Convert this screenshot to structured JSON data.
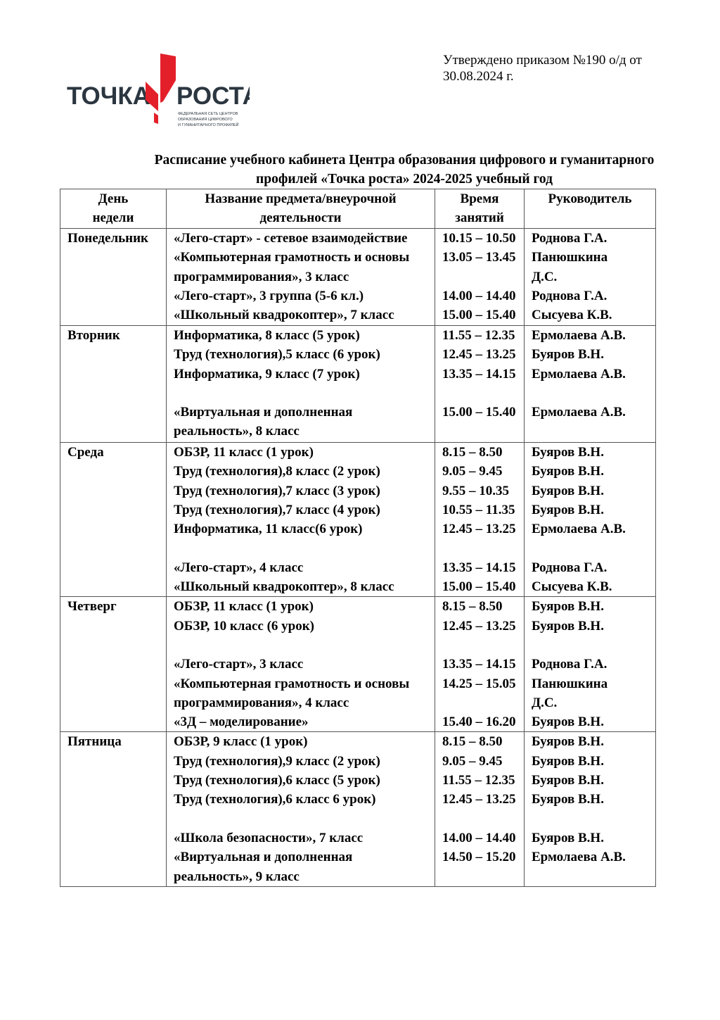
{
  "approval": "Утверждено приказом №190 о/д от 30.08.2024 г.",
  "logo": {
    "left": "ТОЧКА",
    "right": "РОСТА",
    "subtitle": "ФЕДЕРАЛЬНАЯ СЕТЬ ЦЕНТРОВ ОБРАЗОВАНИЯ ЦИФРОВОГО И ГУМАНИТАРНОГО ПРОФИЛЕЙ",
    "accent": "#e3202a",
    "dark": "#2b3640"
  },
  "title": "Расписание учебного кабинета Центра образования цифрового и гуманитарного профилей «Точка роста» 2024-2025 учебный год",
  "headers": [
    "День\nнедели",
    "Название предмета/внеурочной\nдеятельности",
    "Время\nзанятий",
    "Руководитель"
  ],
  "rows": [
    {
      "day": "Понедельник",
      "subjects": "«Лего-старт» - сетевое взаимодействие\n«Компьютерная грамотность и основы\nпрограммирования», 3 класс\n «Лего-старт», 3 группа (5-6 кл.)\n«Школьный квадрокоптер», 7 класс",
      "times": "10.15 – 10.50\n13.05 – 13.45\n\n14.00 – 14.40\n15.00 – 15.40",
      "teachers": "Роднова Г.А.\nПанюшкина\nД.С.\nРоднова Г.А.\nСысуева К.В."
    },
    {
      "day": "Вторник",
      "subjects": "Информатика, 8 класс (5 урок)\nТруд (технология),5 класс (6 урок)\nИнформатика, 9 класс (7 урок)\n\n «Виртуальная и дополненная\nреальность», 8 класс",
      "times": "11.55 – 12.35\n12.45 – 13.25\n13.35 – 14.15\n\n15.00 – 15.40",
      "teachers": "Ермолаева А.В.\nБуяров В.Н.\nЕрмолаева А.В.\n\nЕрмолаева А.В."
    },
    {
      "day": "Среда",
      "subjects": "ОБЗР, 11 класс (1 урок)\nТруд (технология),8 класс (2 урок)\nТруд (технология),7 класс (3 урок)\nТруд (технология),7 класс (4 урок)\nИнформатика, 11 класс(6 урок)\n\n«Лего-старт», 4 класс\n«Школьный квадрокоптер», 8 класс",
      "times": "8.15 – 8.50\n9.05 – 9.45\n9.55 – 10.35\n10.55 – 11.35\n12.45 – 13.25\n\n13.35 – 14.15\n15.00 – 15.40",
      "teachers": "Буяров В.Н.\nБуяров В.Н.\nБуяров В.Н.\nБуяров В.Н.\nЕрмолаева А.В.\n\nРоднова Г.А.\nСысуева К.В."
    },
    {
      "day": "Четверг",
      "subjects": "ОБЗР, 11 класс (1 урок)\nОБЗР, 10 класс (6 урок)\n\n «Лего-старт», 3 класс\n«Компьютерная грамотность и основы\nпрограммирования», 4 класс\n«3Д – моделирование»",
      "times": "8.15 – 8.50\n12.45 – 13.25\n\n13.35 – 14.15\n14.25 – 15.05\n\n15.40 – 16.20",
      "teachers": "Буяров В.Н.\nБуяров В.Н.\n\nРоднова Г.А.\nПанюшкина\nД.С.\nБуяров В.Н."
    },
    {
      "day": "Пятница",
      "subjects": "ОБЗР, 9 класс (1 урок)\nТруд (технология),9 класс (2 урок)\nТруд (технология),6 класс (5 урок)\nТруд (технология),6 класс 6 урок)\n\n «Школа безопасности», 7 класс\n«Виртуальная и дополненная\nреальность», 9 класс",
      "times": "8.15 – 8.50\n9.05 – 9.45\n11.55 – 12.35\n12.45 – 13.25\n\n14.00 – 14.40\n14.50 – 15.20",
      "teachers": "Буяров В.Н.\nБуяров В.Н.\nБуяров В.Н.\nБуяров В.Н.\n\nБуяров В.Н.\nЕрмолаева А.В."
    }
  ]
}
